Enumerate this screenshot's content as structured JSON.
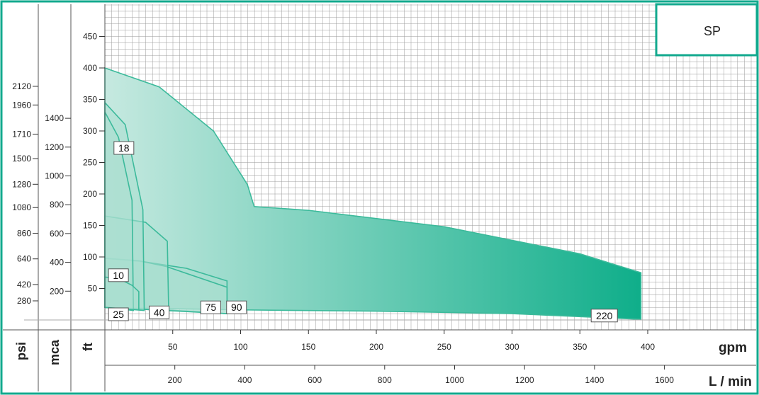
{
  "chart_data": {
    "type": "area",
    "title": "SP",
    "x_axes": [
      {
        "unit": "gpm",
        "ticks": [
          50,
          100,
          150,
          200,
          250,
          300,
          350,
          400
        ],
        "range": [
          0,
          490
        ]
      },
      {
        "unit": "L / min",
        "ticks": [
          200,
          400,
          600,
          800,
          1000,
          1200,
          1400,
          1600
        ],
        "range": [
          0,
          1855
        ]
      }
    ],
    "y_axes": [
      {
        "unit": "psi",
        "ticks": [
          280,
          420,
          640,
          860,
          1080,
          1280,
          1500,
          1710,
          1960,
          2120
        ]
      },
      {
        "unit": "mca",
        "ticks": [
          200,
          400,
          600,
          800,
          1000,
          1200,
          1400
        ]
      },
      {
        "unit": "ft",
        "ticks": [
          50,
          100,
          150,
          200,
          250,
          300,
          350,
          400,
          450
        ],
        "range": [
          0,
          485
        ]
      }
    ],
    "grid": true,
    "series": [
      {
        "name": "220",
        "upper": [
          [
            0,
            400
          ],
          [
            40,
            370
          ],
          [
            80,
            300
          ],
          [
            105,
            215
          ],
          [
            110,
            180
          ],
          [
            150,
            174
          ],
          [
            250,
            148
          ],
          [
            350,
            105
          ],
          [
            395,
            75
          ]
        ],
        "lower": [
          [
            0,
            20
          ],
          [
            100,
            16
          ],
          [
            200,
            14
          ],
          [
            300,
            10
          ],
          [
            395,
            1
          ]
        ]
      },
      {
        "name": "90",
        "upper": [
          [
            0,
            98
          ],
          [
            30,
            92
          ],
          [
            60,
            82
          ],
          [
            90,
            62
          ]
        ],
        "lower": [
          [
            0,
            20
          ],
          [
            45,
            16
          ],
          [
            90,
            10
          ]
        ]
      },
      {
        "name": "75",
        "upper": [
          [
            0,
            98
          ],
          [
            25,
            94
          ],
          [
            45,
            85
          ],
          [
            90,
            52
          ]
        ],
        "lower": [
          [
            0,
            20
          ],
          [
            45,
            15
          ],
          [
            90,
            10
          ]
        ]
      },
      {
        "name": "40",
        "upper": [
          [
            0,
            165
          ],
          [
            30,
            155
          ],
          [
            46,
            125
          ],
          [
            47,
            15
          ]
        ],
        "lower": [
          [
            0,
            20
          ],
          [
            47,
            15
          ]
        ]
      },
      {
        "name": "18",
        "upper": [
          [
            0,
            345
          ],
          [
            15,
            310
          ],
          [
            28,
            175
          ],
          [
            29,
            15
          ]
        ],
        "lower": [
          [
            0,
            20
          ],
          [
            29,
            15
          ]
        ]
      },
      {
        "name": "10",
        "upper": [
          [
            0,
            330
          ],
          [
            10,
            290
          ],
          [
            20,
            190
          ],
          [
            21,
            15
          ]
        ],
        "lower": [
          [
            0,
            20
          ],
          [
            21,
            15
          ]
        ]
      },
      {
        "name": "25",
        "upper": [
          [
            0,
            68
          ],
          [
            10,
            66
          ],
          [
            20,
            55
          ],
          [
            25,
            45
          ]
        ],
        "lower": [
          [
            0,
            20
          ],
          [
            25,
            16
          ]
        ]
      }
    ]
  },
  "colors": {
    "frame": "#12a98e",
    "curve": "#3cba9b",
    "grid": "#9a9a9a",
    "fill_light": "#bfe6dc",
    "fill_dark": "#0fae8a"
  }
}
